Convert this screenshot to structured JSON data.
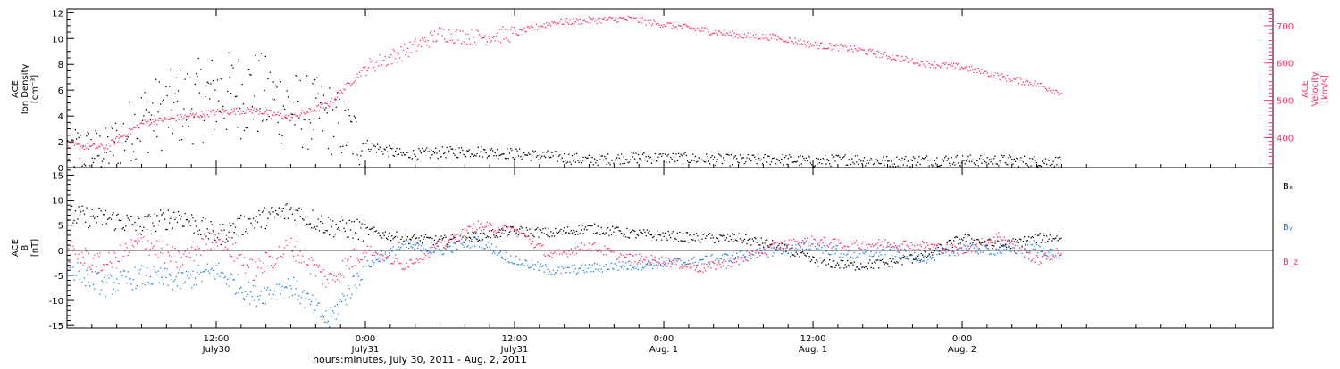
{
  "colors": {
    "density": "#000000",
    "velocity": "#ff3366",
    "bx": "#000000",
    "by": "#1f7fe0",
    "bz": "#ff3366"
  },
  "chart_data": [
    {
      "type": "scatter",
      "panel": "top",
      "left_axis_label": [
        "ACE",
        "Ion Density",
        "[cm⁻³]"
      ],
      "right_axis_label": [
        "ACE",
        "Velocity",
        "[km/s]"
      ],
      "left_ticks": [
        0,
        2,
        4,
        6,
        8,
        10,
        12
      ],
      "right_ticks": [
        400,
        500,
        600,
        700
      ],
      "ylim_left": [
        0,
        12.3
      ],
      "ylim_right": [
        320,
        745
      ],
      "series": [
        {
          "axis": "left",
          "x_hours": [
            0,
            3,
            6,
            9,
            12,
            15,
            18,
            21,
            24,
            27,
            30,
            33,
            36,
            39,
            42,
            45,
            48,
            51,
            54,
            57,
            60,
            63,
            66,
            69,
            72,
            75,
            78,
            80
          ],
          "values": [
            1.5,
            1.2,
            3.8,
            4.8,
            5.6,
            5.8,
            4.6,
            3.9,
            1.8,
            1.0,
            1.2,
            1.3,
            1.1,
            0.9,
            0.6,
            0.8,
            0.8,
            0.7,
            0.6,
            0.7,
            0.5,
            0.7,
            0.5,
            0.6,
            0.6,
            0.6,
            0.5,
            0.5
          ]
        },
        {
          "axis": "right",
          "x_hours": [
            0,
            3,
            6,
            9,
            12,
            15,
            18,
            21,
            24,
            27,
            30,
            33,
            36,
            39,
            42,
            45,
            48,
            51,
            54,
            57,
            60,
            63,
            66,
            69,
            72,
            75,
            78,
            80
          ],
          "values": [
            380,
            375,
            440,
            455,
            470,
            475,
            455,
            490,
            590,
            630,
            680,
            670,
            680,
            710,
            715,
            720,
            705,
            690,
            675,
            670,
            650,
            640,
            620,
            600,
            590,
            565,
            545,
            520
          ]
        }
      ]
    },
    {
      "type": "scatter",
      "panel": "bottom",
      "left_axis_label": [
        "ACE",
        "B",
        "[nT]"
      ],
      "left_ticks": [
        -15,
        -10,
        -5,
        0,
        5,
        10,
        15
      ],
      "ylim": [
        -15.5,
        16.5
      ],
      "legend": [
        "Bₓ",
        "Bᵧ",
        "B_z"
      ],
      "series": [
        {
          "name": "Bₓ",
          "x_hours": [
            0,
            3,
            6,
            9,
            12,
            15,
            18,
            21,
            24,
            27,
            30,
            33,
            36,
            39,
            42,
            45,
            48,
            51,
            54,
            57,
            60,
            63,
            66,
            69,
            72,
            75,
            78,
            80
          ],
          "values": [
            7,
            6.5,
            5,
            7,
            3,
            6,
            8,
            5,
            4,
            2.5,
            2,
            3,
            4,
            3.5,
            4.5,
            3.5,
            3,
            2.5,
            2.5,
            1,
            -2,
            -3,
            -2.5,
            -1,
            2.5,
            1,
            2.5,
            2.8
          ]
        },
        {
          "name": "Bᵧ",
          "x_hours": [
            0,
            3,
            6,
            9,
            12,
            15,
            18,
            21,
            24,
            27,
            30,
            33,
            36,
            39,
            42,
            45,
            48,
            51,
            54,
            57,
            60,
            63,
            66,
            69,
            72,
            75,
            78,
            80
          ],
          "values": [
            -3,
            -7,
            -5,
            -6,
            -4,
            -9,
            -7,
            -14,
            -3,
            1,
            0,
            2,
            -2,
            -4,
            -3.5,
            -3,
            -2.5,
            -2,
            -1,
            0,
            1,
            -1,
            0,
            -1.5,
            0.5,
            0,
            0.5,
            -1
          ]
        },
        {
          "name": "B_z",
          "x_hours": [
            0,
            3,
            6,
            9,
            12,
            15,
            18,
            21,
            24,
            27,
            30,
            33,
            36,
            39,
            42,
            45,
            48,
            51,
            54,
            57,
            60,
            63,
            66,
            69,
            72,
            75,
            78,
            80
          ],
          "values": [
            0,
            -3,
            2,
            -2,
            3,
            -4,
            1,
            -6,
            0.5,
            -3,
            1,
            5,
            4,
            -1,
            1,
            -1.5,
            -2,
            -3.5,
            -2,
            1,
            2,
            1,
            1.5,
            1,
            0,
            3,
            -2,
            0
          ]
        }
      ]
    }
  ],
  "x_axis": {
    "title": "hours:minutes, July 30, 2011 - Aug. 2, 2011",
    "ticks": [
      {
        "hours": 12,
        "time": "12:00",
        "date": "July30"
      },
      {
        "hours": 24,
        "time": "0:00",
        "date": "July31"
      },
      {
        "hours": 36,
        "time": "12:00",
        "date": "July31"
      },
      {
        "hours": 48,
        "time": "0:00",
        "date": "Aug. 1"
      },
      {
        "hours": 60,
        "time": "12:00",
        "date": "Aug. 1"
      },
      {
        "hours": 72,
        "time": "0:00",
        "date": "Aug. 2"
      }
    ],
    "range_hours": [
      0,
      97
    ]
  }
}
